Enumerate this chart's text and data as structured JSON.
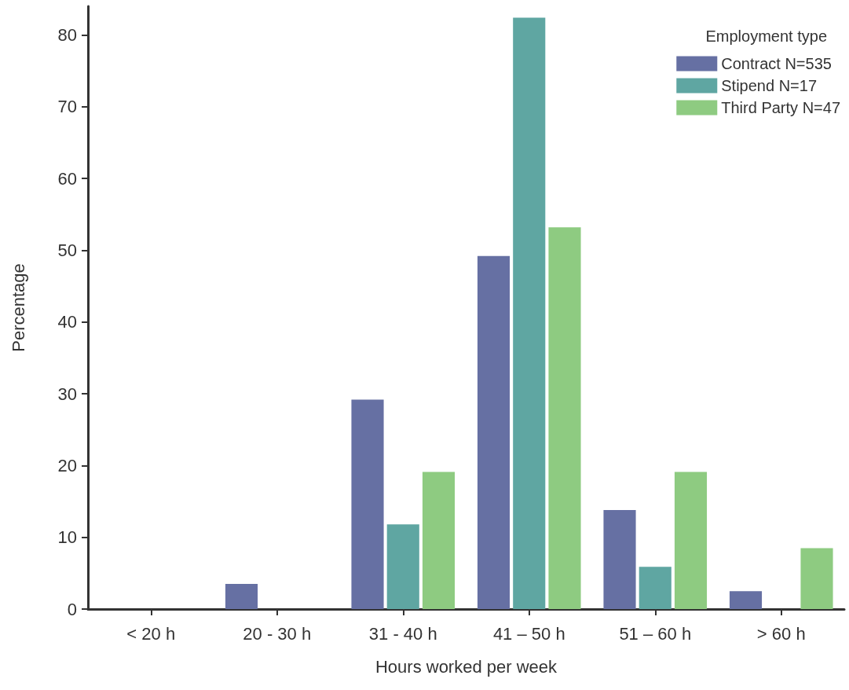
{
  "chart_data": {
    "type": "bar",
    "xlabel": "Hours worked per week",
    "ylabel": "Percentage",
    "legend_title": "Employment type",
    "categories": [
      "< 20 h",
      "20 - 30 h",
      "31 - 40 h",
      "41 – 50 h",
      "51 – 60 h",
      "> 60 h"
    ],
    "series": [
      {
        "name": "Contract N=535",
        "color": "#6670a3",
        "values": [
          0,
          3.5,
          29.2,
          49.2,
          13.8,
          2.5
        ]
      },
      {
        "name": "Stipend N=17",
        "color": "#5fa6a2",
        "values": [
          0,
          0,
          11.8,
          82.4,
          5.9,
          0
        ]
      },
      {
        "name": "Third Party N=47",
        "color": "#8ecb81",
        "values": [
          0,
          0,
          19.1,
          53.2,
          19.1,
          8.5
        ]
      }
    ],
    "ylim": [
      0,
      84
    ],
    "yticks": [
      0,
      10,
      20,
      30,
      40,
      50,
      60,
      70,
      80
    ],
    "grid": false,
    "legend": "top right"
  }
}
